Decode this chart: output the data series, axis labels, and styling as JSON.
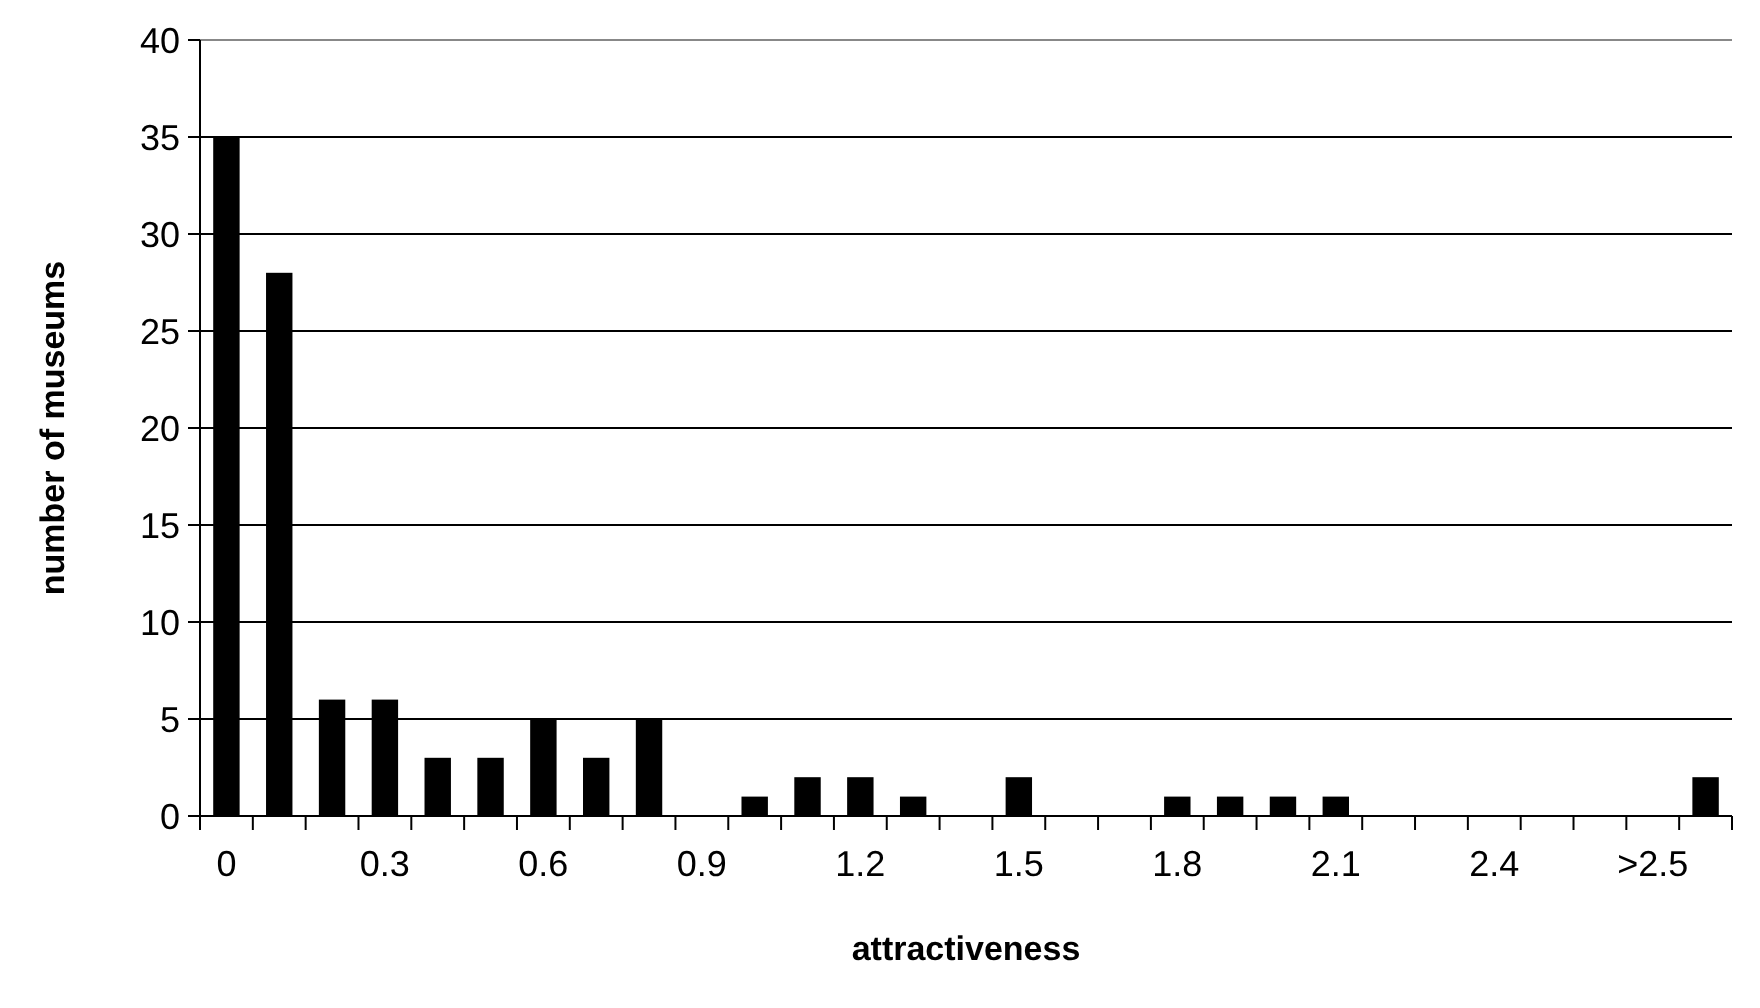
{
  "chart_data": {
    "type": "bar",
    "xlabel": "attractiveness",
    "ylabel": "number of museums",
    "categories": [
      "0",
      null,
      null,
      "0.3",
      null,
      null,
      "0.6",
      null,
      null,
      "0.9",
      null,
      null,
      "1.2",
      null,
      null,
      "1.5",
      null,
      null,
      "1.8",
      null,
      null,
      "2.1",
      null,
      null,
      "2.4",
      null,
      null,
      ">2.5",
      null
    ],
    "values": [
      35,
      28,
      6,
      6,
      3,
      3,
      5,
      3,
      5,
      0,
      1,
      2,
      2,
      1,
      0,
      2,
      0,
      0,
      1,
      1,
      1,
      1,
      0,
      0,
      0,
      0,
      0,
      0,
      2
    ],
    "color": "#000000",
    "ylim": [
      0,
      40
    ],
    "yticks": [
      0,
      5,
      10,
      15,
      20,
      25,
      30,
      35,
      40
    ],
    "grid": "y"
  }
}
